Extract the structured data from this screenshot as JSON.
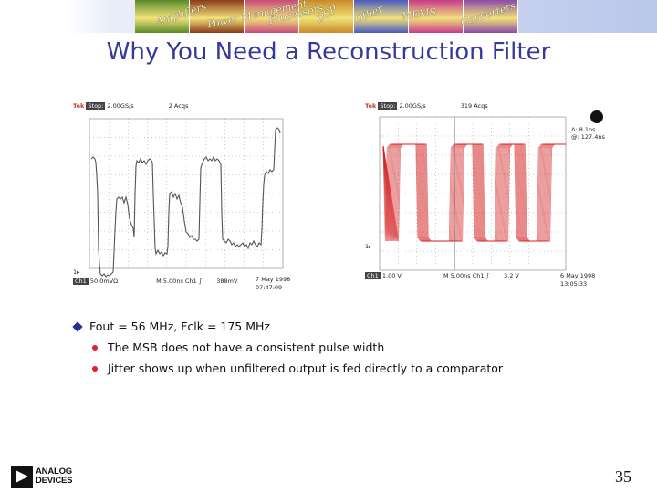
{
  "header": {
    "banner_words": [
      "Amplifiers",
      "Power Management",
      "Processors",
      "DSP",
      "Other",
      "MEMS",
      "Converters"
    ],
    "banner_colors": [
      "#5a8a2a",
      "#8a3a1a",
      "#c64a7a",
      "#c88a2a",
      "#4a5ac0",
      "#c83a8a",
      "#8a4aa8"
    ]
  },
  "slide": {
    "title": "Why You Need a Reconstruction Filter",
    "page_number": "35"
  },
  "scope_left": {
    "tek": "Tek",
    "stop": "Stop:",
    "rate": "2.00GS/s",
    "acqs": "2 Acqs",
    "ch_label": "Ch1",
    "volts": "50.0mVΩ",
    "time": "M 5.00ns",
    "trig": "Ch1 ∫",
    "trig_level": "388mV",
    "date": "7 May 1998",
    "clock": "07:47:09",
    "ground_marker": "1▸",
    "waveform_color": "#555555"
  },
  "scope_right": {
    "tek": "Tek",
    "stop": "Stop:",
    "rate": "2.00GS/s",
    "acqs": "319 Acqs",
    "delta": "Δ: 8.1ns",
    "at": "@: 127.4ns",
    "ch_label": "Ch1",
    "volts": "1.00 V",
    "time": "M 5.00ns",
    "trig": "Ch1 ∫",
    "trig_level": "3.2 V",
    "date": "6 May 1998",
    "clock": "13:05:33",
    "ground_marker": "1▸",
    "waveform_color": "#d42020"
  },
  "bullets": {
    "main": "Fout = 56 MHz, Fclk = 175 MHz",
    "sub": [
      "The MSB does not have a consistent pulse width",
      "Jitter shows up when unfiltered output is fed directly to a comparator"
    ]
  },
  "logo": {
    "line1": "ANALOG",
    "line2": "DEVICES"
  }
}
